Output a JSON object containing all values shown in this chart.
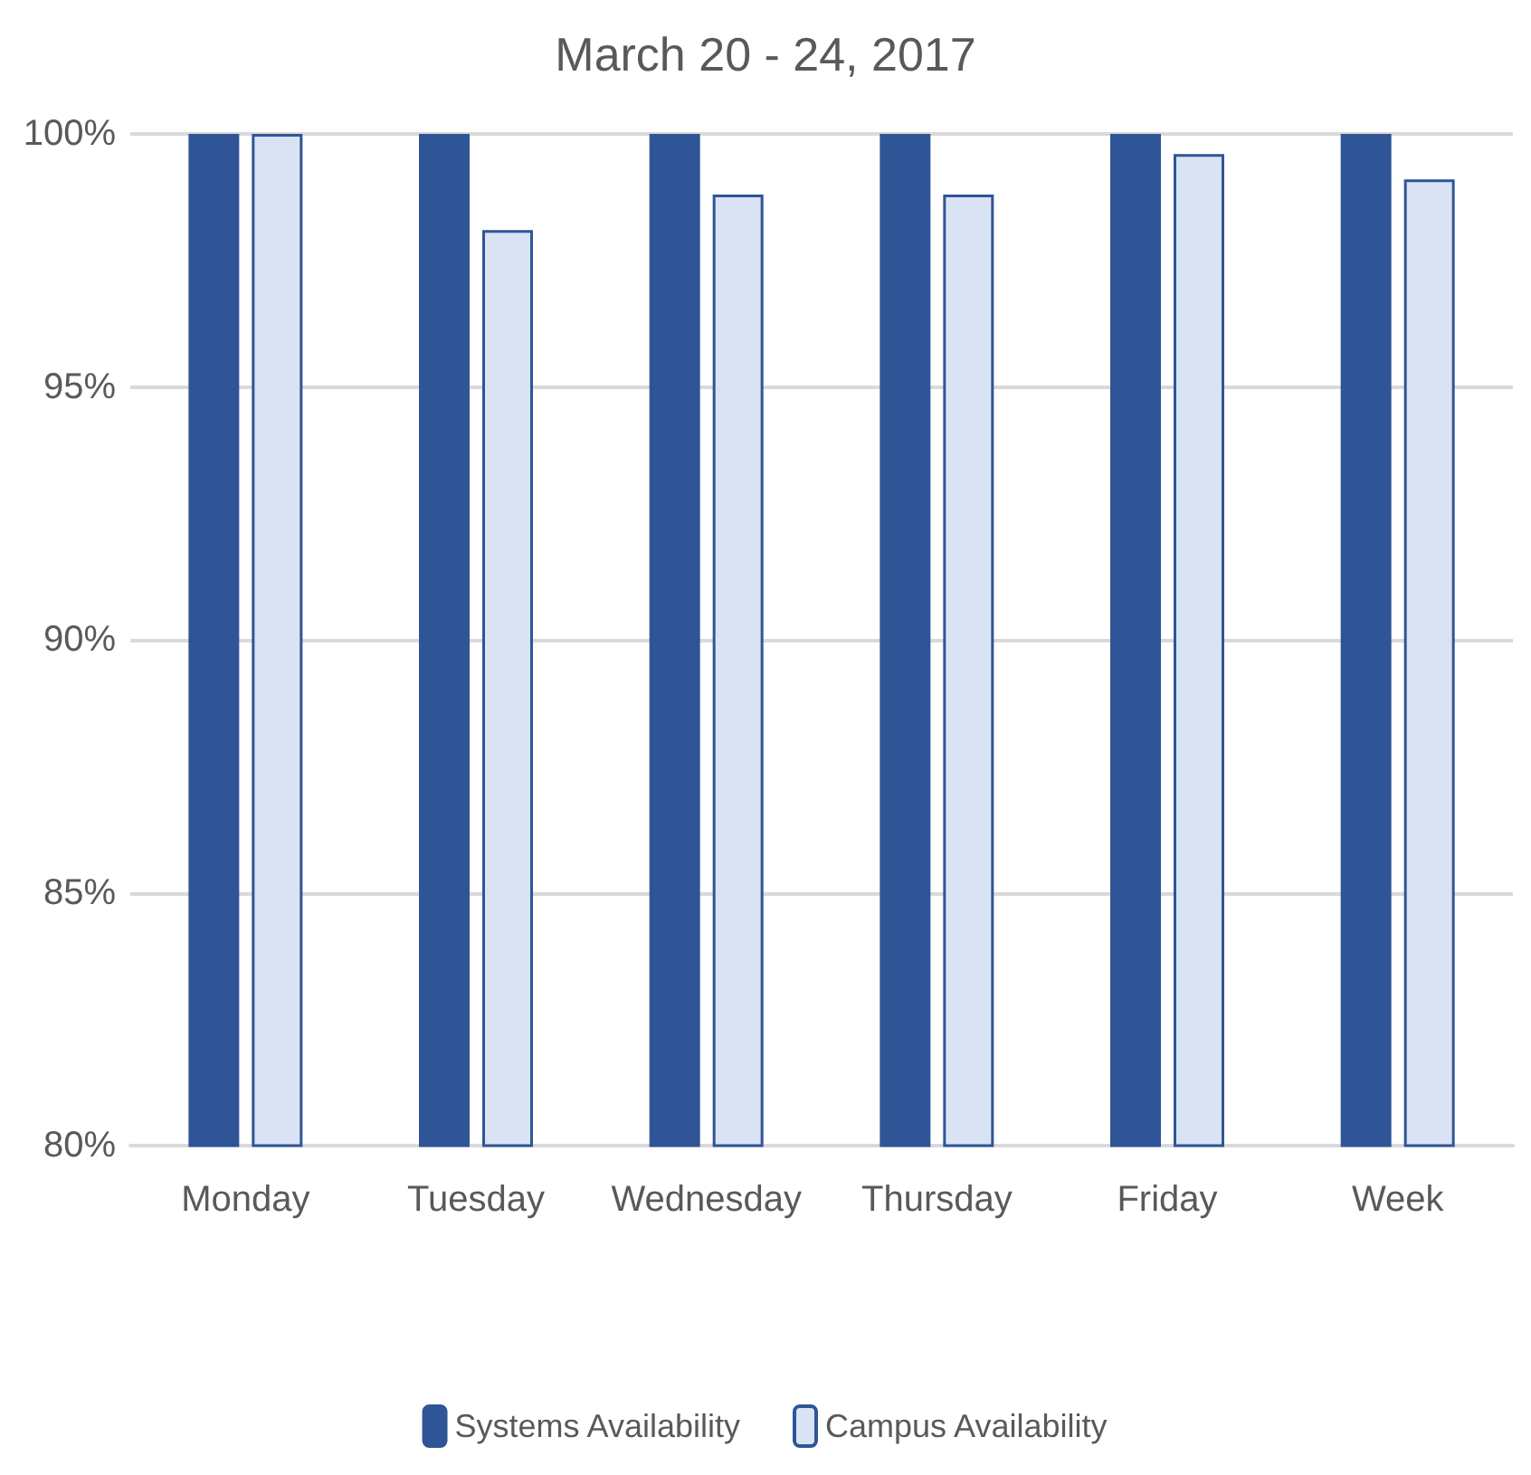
{
  "chart_data": {
    "type": "bar",
    "title": "March 20 - 24, 2017",
    "categories": [
      "Monday",
      "Tuesday",
      "Wednesday",
      "Thursday",
      "Friday",
      "Week"
    ],
    "series": [
      {
        "name": "Systems Availability",
        "color": "#2f5597",
        "values": [
          100,
          100,
          100,
          100,
          100,
          100
        ]
      },
      {
        "name": "Campus Availability",
        "color": "#dae3f3",
        "values": [
          100,
          98.1,
          98.8,
          98.8,
          99.6,
          99.1
        ]
      }
    ],
    "ylim": [
      80,
      100
    ],
    "yticks": [
      {
        "value": 80,
        "label": "80%"
      },
      {
        "value": 85,
        "label": "85%"
      },
      {
        "value": 90,
        "label": "90%"
      },
      {
        "value": 95,
        "label": "95%"
      },
      {
        "value": 100,
        "label": "100%"
      }
    ],
    "grid": "y",
    "legend": "bottom"
  }
}
